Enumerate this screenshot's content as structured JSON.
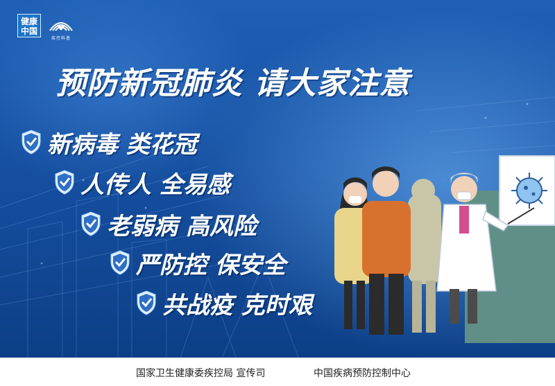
{
  "logos": {
    "jiankang_zhongguo": [
      "健康",
      "中国"
    ],
    "cdc_label": "疾控科普"
  },
  "title": "预防新冠肺炎 请大家注意",
  "slogans": [
    "新病毒 类花冠",
    "人传人 全易感",
    "老弱病 高风险",
    "严防控 保安全",
    "共战疫 克时艰"
  ],
  "footer": {
    "left": "国家卫生健康委疾控局  宣传司",
    "right": "中国疾病预防控制中心"
  },
  "colors": {
    "background_top": "#1e5fb4",
    "background_bottom": "#0d3f87",
    "text": "#ffffff",
    "shield": "#2f6fc4"
  },
  "icons": [
    "shield-check-icon",
    "virus-icon",
    "healthcare-logo-icon"
  ]
}
